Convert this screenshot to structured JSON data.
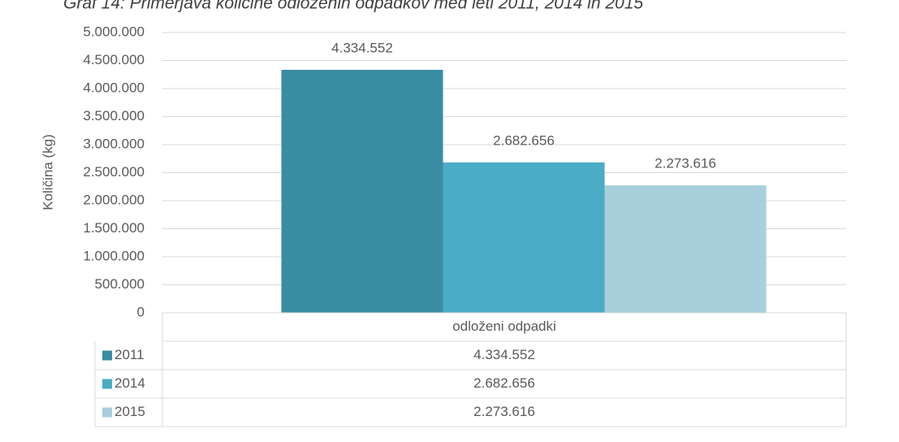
{
  "chart_data": {
    "type": "bar",
    "title": "Graf 14: Primerjava količine odloženih odpadkov med leti 2011, 2014 in 2015",
    "y_label": "Količina (kg)",
    "categories": [
      "odloženi odpadki"
    ],
    "series": [
      {
        "name": "2011",
        "color": "#3a8ca3",
        "values": [
          4334552
        ],
        "value_labels": [
          "4.334.552"
        ]
      },
      {
        "name": "2014",
        "color": "#4bacc6",
        "values": [
          2682656
        ],
        "value_labels": [
          "2.682.656"
        ]
      },
      {
        "name": "2015",
        "color": "#a8cfdc",
        "values": [
          2273616
        ],
        "value_labels": [
          "2.273.616"
        ]
      }
    ],
    "ylim": [
      0,
      5000000
    ],
    "yticks": [
      0,
      {
        "value": 500000,
        "label": "500.000"
      },
      {
        "value": 1000000,
        "label": "1.000.000"
      },
      {
        "value": 1500000,
        "label": "1.500.000"
      },
      {
        "value": 2000000,
        "label": "2.000.000"
      },
      {
        "value": 2500000,
        "label": "2.500.000"
      },
      {
        "value": 3000000,
        "label": "3.000.000"
      },
      {
        "value": 3500000,
        "label": "3.500.000"
      },
      {
        "value": 4000000,
        "label": "4.000.000"
      },
      {
        "value": 4500000,
        "label": "4.500.000"
      },
      {
        "value": 5000000,
        "label": "5.000.000"
      }
    ],
    "grid": true
  }
}
